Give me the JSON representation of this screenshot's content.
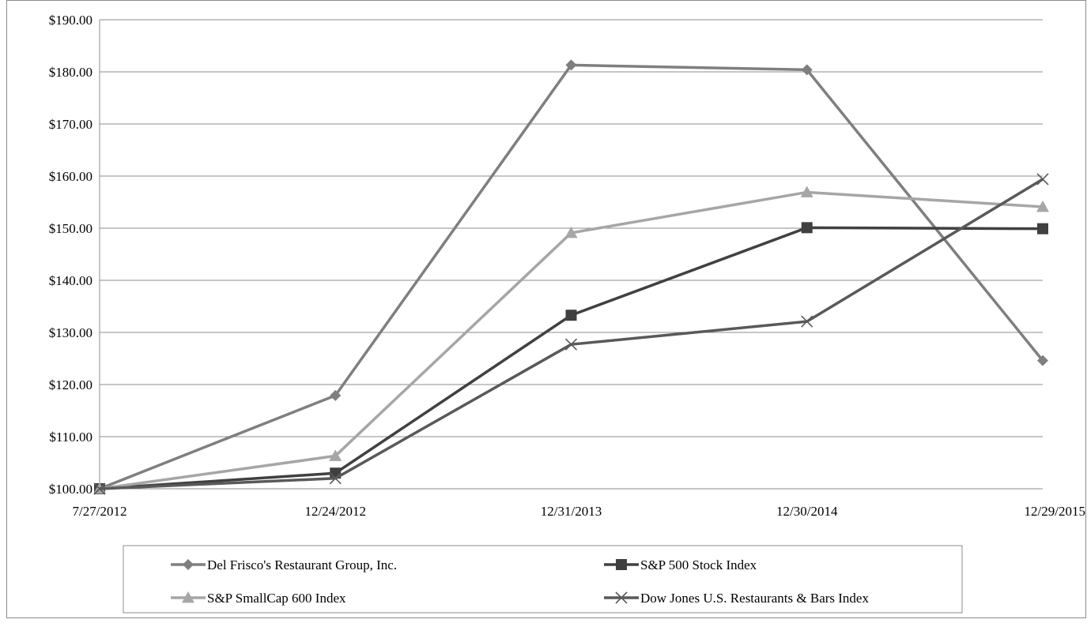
{
  "chart_data": {
    "type": "line",
    "title": "",
    "xlabel": "",
    "ylabel": "",
    "categories": [
      "7/27/2012",
      "12/24/2012",
      "12/31/2013",
      "12/30/2014",
      "12/29/2015"
    ],
    "ylim": [
      100,
      190
    ],
    "yticks": [
      "$100.00",
      "$110.00",
      "$120.00",
      "$130.00",
      "$140.00",
      "$150.00",
      "$160.00",
      "$170.00",
      "$180.00",
      "$190.00"
    ],
    "ytick_values": [
      100,
      110,
      120,
      130,
      140,
      150,
      160,
      170,
      180,
      190
    ],
    "grid": "horizontal",
    "legend_position": "bottom",
    "series": [
      {
        "name": "Del Frisco's Restaurant Group, Inc.",
        "values": [
          100.0,
          117.9,
          181.3,
          180.4,
          124.6
        ],
        "color": "#7f7f7f",
        "marker": "diamond"
      },
      {
        "name": "S&P 500 Stock Index",
        "values": [
          100.0,
          103.0,
          133.3,
          150.1,
          149.9
        ],
        "color": "#404040",
        "marker": "square"
      },
      {
        "name": "S&P SmallCap 600 Index",
        "values": [
          100.0,
          106.3,
          149.1,
          156.9,
          154.1
        ],
        "color": "#a6a6a6",
        "marker": "triangle"
      },
      {
        "name": "Dow Jones U.S. Restaurants & Bars Index",
        "values": [
          100.0,
          102.0,
          127.7,
          132.1,
          159.4
        ],
        "color": "#595959",
        "marker": "x"
      }
    ]
  }
}
